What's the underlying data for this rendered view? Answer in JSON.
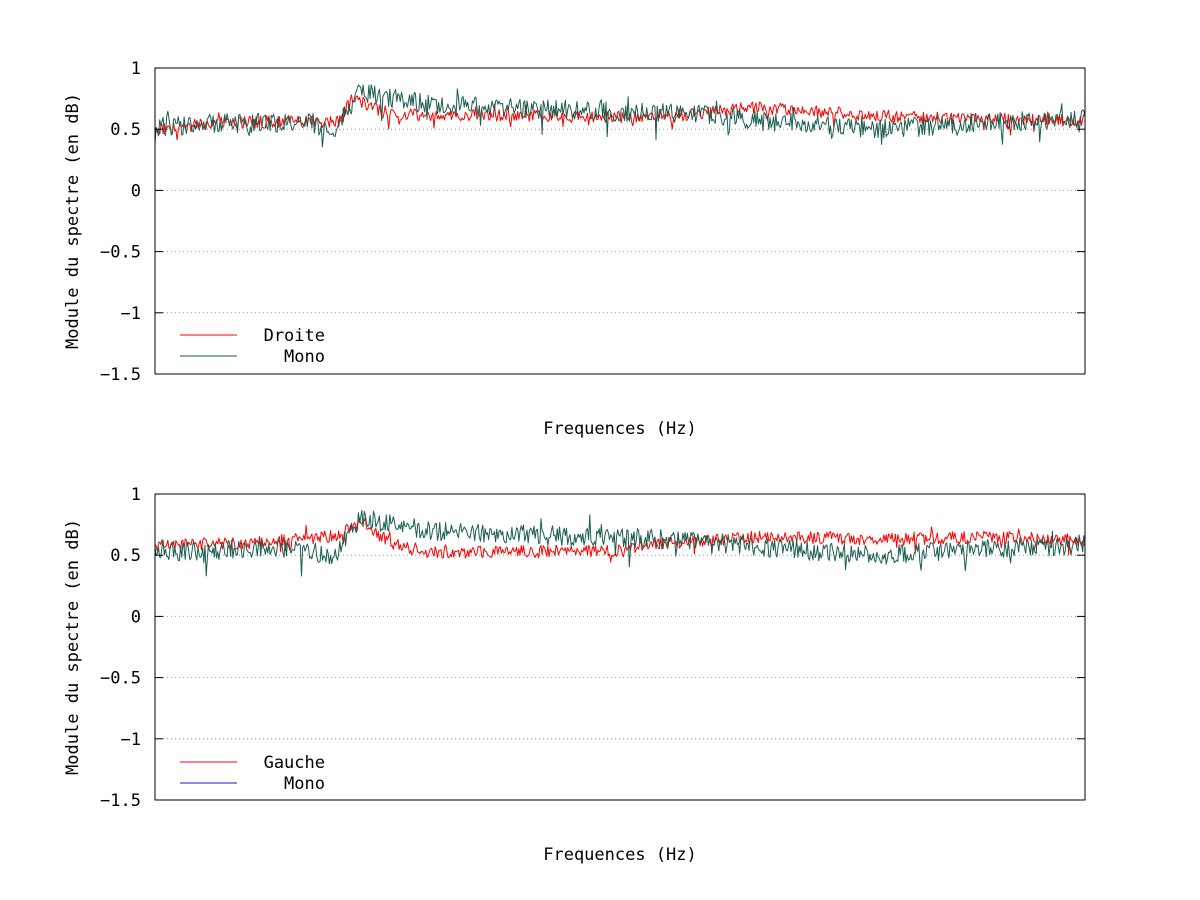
{
  "colors": {
    "red": "#ff0000",
    "green": "#1a5e50",
    "legend_mono_bottom": "#8888ee",
    "grid": "#999999",
    "axis": "#000000"
  },
  "chart_data": [
    {
      "type": "line",
      "xlabel": "Frequences (Hz)",
      "ylabel": "Module du spectre (en dB)",
      "ylim": [
        -1.5,
        1
      ],
      "yticks": [
        1,
        0.5,
        0,
        -0.5,
        -1,
        -1.5
      ],
      "ytick_labels": [
        "1",
        "0.5",
        "0",
        "−0.5",
        "−1",
        "−1.5"
      ],
      "xticks_shown": false,
      "grid": "horizontal dotted",
      "legend_position": "bottom-left",
      "samples": 800,
      "series": [
        {
          "name": "Droite",
          "color": "#ff0000",
          "anchors": [
            [
              0,
              0.5
            ],
            [
              0.08,
              0.56
            ],
            [
              0.2,
              0.56
            ],
            [
              0.21,
              0.76
            ],
            [
              0.25,
              0.62
            ],
            [
              0.5,
              0.6
            ],
            [
              0.58,
              0.62
            ],
            [
              0.64,
              0.68
            ],
            [
              0.8,
              0.6
            ],
            [
              0.86,
              0.59
            ],
            [
              1,
              0.57
            ]
          ],
          "noise": 0.05
        },
        {
          "name": "Mono",
          "color": "#1a5e50",
          "anchors": [
            [
              0,
              0.52
            ],
            [
              0.08,
              0.55
            ],
            [
              0.17,
              0.55
            ],
            [
              0.19,
              0.45
            ],
            [
              0.22,
              0.8
            ],
            [
              0.3,
              0.7
            ],
            [
              0.5,
              0.64
            ],
            [
              0.6,
              0.62
            ],
            [
              0.64,
              0.57
            ],
            [
              0.78,
              0.5
            ],
            [
              0.88,
              0.55
            ],
            [
              1,
              0.58
            ]
          ],
          "noise": 0.08
        }
      ]
    },
    {
      "type": "line",
      "xlabel": "Frequences (Hz)",
      "ylabel": "Module du spectre (en dB)",
      "ylim": [
        -1.5,
        1
      ],
      "yticks": [
        1,
        0.5,
        0,
        -0.5,
        -1,
        -1.5
      ],
      "ytick_labels": [
        "1",
        "0.5",
        "0",
        "−0.5",
        "−1",
        "−1.5"
      ],
      "xticks_shown": false,
      "grid": "horizontal dotted",
      "legend_position": "bottom-left",
      "samples": 800,
      "series": [
        {
          "name": "Gauche",
          "color": "#ff0000",
          "anchors": [
            [
              0,
              0.58
            ],
            [
              0.1,
              0.6
            ],
            [
              0.2,
              0.66
            ],
            [
              0.22,
              0.8
            ],
            [
              0.25,
              0.6
            ],
            [
              0.3,
              0.52
            ],
            [
              0.5,
              0.54
            ],
            [
              0.55,
              0.6
            ],
            [
              0.6,
              0.62
            ],
            [
              0.65,
              0.65
            ],
            [
              0.8,
              0.63
            ],
            [
              0.9,
              0.65
            ],
            [
              1,
              0.62
            ]
          ],
          "noise": 0.05
        },
        {
          "name": "Mono",
          "color": "#1a5e50",
          "legend_color": "#8888ee",
          "anchors": [
            [
              0,
              0.52
            ],
            [
              0.08,
              0.55
            ],
            [
              0.17,
              0.55
            ],
            [
              0.19,
              0.45
            ],
            [
              0.22,
              0.8
            ],
            [
              0.3,
              0.7
            ],
            [
              0.5,
              0.64
            ],
            [
              0.6,
              0.62
            ],
            [
              0.64,
              0.57
            ],
            [
              0.78,
              0.5
            ],
            [
              0.88,
              0.55
            ],
            [
              1,
              0.58
            ]
          ],
          "noise": 0.08
        }
      ]
    }
  ]
}
